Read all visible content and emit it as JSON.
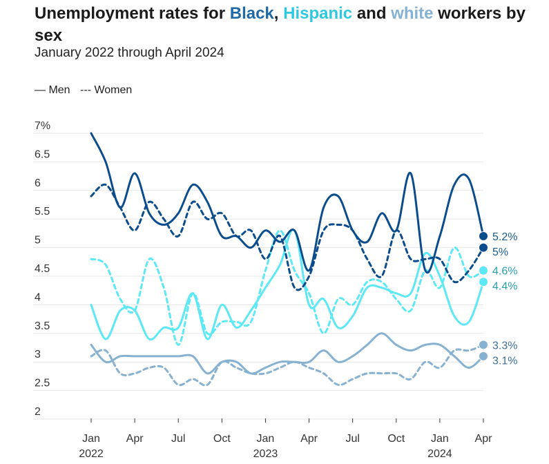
{
  "title": {
    "part1": "Unemployment rates for ",
    "black": "Black",
    "sep1": ", ",
    "hispanic": "Hispanic",
    "sep2": " and ",
    "white": "white",
    "part2": " workers by sex"
  },
  "subtitle": "January 2022 through April 2024",
  "legend": {
    "men": "— Men",
    "women": "--- Women"
  },
  "colors": {
    "black": "#0b4d8c",
    "hispanic": "#5ce8f5",
    "white": "#86b1d1",
    "title_black": "#1f6aa5",
    "title_hispanic": "#2ec9e0",
    "title_white": "#85b2d2"
  },
  "chart_data": {
    "type": "line",
    "title": "Unemployment rates for Black, Hispanic and white workers by sex",
    "subtitle": "January 2022 through April 2024",
    "xlabel": "",
    "ylabel": "",
    "ylim": [
      2,
      7
    ],
    "yticks": [
      "2",
      "2.5",
      "3",
      "3.5",
      "4",
      "4.5",
      "5",
      "5.5",
      "6",
      "6.5",
      "7%"
    ],
    "yticks_values": [
      2,
      2.5,
      3,
      3.5,
      4,
      4.5,
      5,
      5.5,
      6,
      6.5,
      7
    ],
    "x": [
      "2022-01",
      "2022-02",
      "2022-03",
      "2022-04",
      "2022-05",
      "2022-06",
      "2022-07",
      "2022-08",
      "2022-09",
      "2022-10",
      "2022-11",
      "2022-12",
      "2023-01",
      "2023-02",
      "2023-03",
      "2023-04",
      "2023-05",
      "2023-06",
      "2023-07",
      "2023-08",
      "2023-09",
      "2023-10",
      "2023-11",
      "2023-12",
      "2024-01",
      "2024-02",
      "2024-03",
      "2024-04"
    ],
    "xticks": [
      {
        "index": 0,
        "label": "Jan",
        "year": "2022"
      },
      {
        "index": 3,
        "label": "Apr",
        "year": ""
      },
      {
        "index": 6,
        "label": "Jul",
        "year": ""
      },
      {
        "index": 9,
        "label": "Oct",
        "year": ""
      },
      {
        "index": 12,
        "label": "Jan",
        "year": "2023"
      },
      {
        "index": 15,
        "label": "Apr",
        "year": ""
      },
      {
        "index": 18,
        "label": "Jul",
        "year": ""
      },
      {
        "index": 21,
        "label": "Oct",
        "year": ""
      },
      {
        "index": 24,
        "label": "Jan",
        "year": "2024"
      },
      {
        "index": 27,
        "label": "Apr",
        "year": ""
      }
    ],
    "grid": true,
    "legend_position": "top-left",
    "series": [
      {
        "name": "Black Men",
        "group": "black",
        "dash": false,
        "end_label": "5.2%",
        "values": [
          7.0,
          6.5,
          5.7,
          6.3,
          5.6,
          5.4,
          5.6,
          6.1,
          5.8,
          5.2,
          5.2,
          5.0,
          5.3,
          5.1,
          5.3,
          4.6,
          5.7,
          5.9,
          5.3,
          5.1,
          5.6,
          5.3,
          6.3,
          4.6,
          5.2,
          6.1,
          6.2,
          5.2
        ]
      },
      {
        "name": "Black Women",
        "group": "black",
        "dash": true,
        "end_label": "5%",
        "values": [
          5.9,
          6.1,
          5.7,
          5.3,
          5.8,
          5.5,
          5.2,
          5.8,
          5.5,
          5.6,
          5.2,
          5.3,
          4.8,
          5.2,
          4.3,
          4.5,
          5.3,
          5.4,
          5.3,
          4.8,
          4.5,
          5.3,
          4.8,
          4.8,
          4.8,
          4.4,
          4.6,
          5.0
        ]
      },
      {
        "name": "Hispanic Men",
        "group": "hispanic",
        "dash": false,
        "end_label": "4.4%",
        "values": [
          4.0,
          3.4,
          3.9,
          3.9,
          3.4,
          3.6,
          3.6,
          4.2,
          3.4,
          4.0,
          3.6,
          3.9,
          4.3,
          4.7,
          5.3,
          4.0,
          4.1,
          3.6,
          3.8,
          4.3,
          4.3,
          4.2,
          4.2,
          4.9,
          4.5,
          3.8,
          3.7,
          4.4
        ]
      },
      {
        "name": "Hispanic Women",
        "group": "hispanic",
        "dash": true,
        "end_label": "4.6%",
        "values": [
          4.8,
          4.7,
          4.1,
          3.9,
          4.8,
          4.3,
          3.3,
          4.2,
          3.5,
          3.7,
          3.7,
          3.7,
          4.6,
          5.3,
          4.6,
          4.2,
          3.5,
          4.1,
          4.0,
          4.4,
          4.4,
          4.1,
          3.9,
          4.6,
          4.3,
          5.0,
          4.5,
          4.6
        ]
      },
      {
        "name": "White Men",
        "group": "white",
        "dash": false,
        "end_label": "3.1%",
        "values": [
          3.3,
          3.0,
          3.1,
          3.1,
          3.1,
          3.1,
          3.1,
          3.1,
          2.8,
          3.0,
          3.0,
          2.8,
          2.9,
          3.0,
          3.0,
          3.0,
          3.2,
          3.0,
          3.1,
          3.3,
          3.5,
          3.3,
          3.2,
          3.3,
          3.3,
          3.1,
          2.9,
          3.1
        ]
      },
      {
        "name": "White Women",
        "group": "white",
        "dash": true,
        "end_label": "3.3%",
        "values": [
          3.1,
          3.2,
          2.8,
          2.8,
          2.9,
          2.9,
          2.6,
          2.7,
          2.6,
          3.0,
          2.9,
          2.8,
          2.8,
          2.9,
          3.0,
          2.9,
          2.8,
          2.6,
          2.7,
          2.8,
          2.8,
          2.8,
          2.7,
          3.0,
          2.9,
          3.2,
          3.2,
          3.3
        ]
      }
    ]
  }
}
